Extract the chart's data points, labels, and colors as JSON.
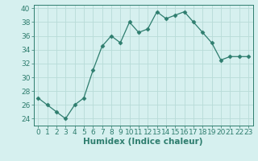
{
  "x": [
    0,
    1,
    2,
    3,
    4,
    5,
    6,
    7,
    8,
    9,
    10,
    11,
    12,
    13,
    14,
    15,
    16,
    17,
    18,
    19,
    20,
    21,
    22,
    23
  ],
  "y": [
    27,
    26,
    25,
    24,
    26,
    27,
    31,
    34.5,
    36,
    35,
    38,
    36.5,
    37,
    39.5,
    38.5,
    39,
    39.5,
    38,
    36.5,
    35,
    32.5,
    33,
    33,
    33
  ],
  "line_color": "#2e7d6e",
  "marker": "D",
  "marker_size": 2.5,
  "bg_color": "#d6f0ef",
  "grid_color": "#b8dbd8",
  "xlabel": "Humidex (Indice chaleur)",
  "xlim": [
    -0.5,
    23.5
  ],
  "ylim": [
    23,
    40.5
  ],
  "yticks": [
    24,
    26,
    28,
    30,
    32,
    34,
    36,
    38,
    40
  ],
  "xticks": [
    0,
    1,
    2,
    3,
    4,
    5,
    6,
    7,
    8,
    9,
    10,
    11,
    12,
    13,
    14,
    15,
    16,
    17,
    18,
    19,
    20,
    21,
    22,
    23
  ],
  "tick_label_fontsize": 6.5,
  "xlabel_fontsize": 7.5,
  "axis_color": "#2e7d6e"
}
